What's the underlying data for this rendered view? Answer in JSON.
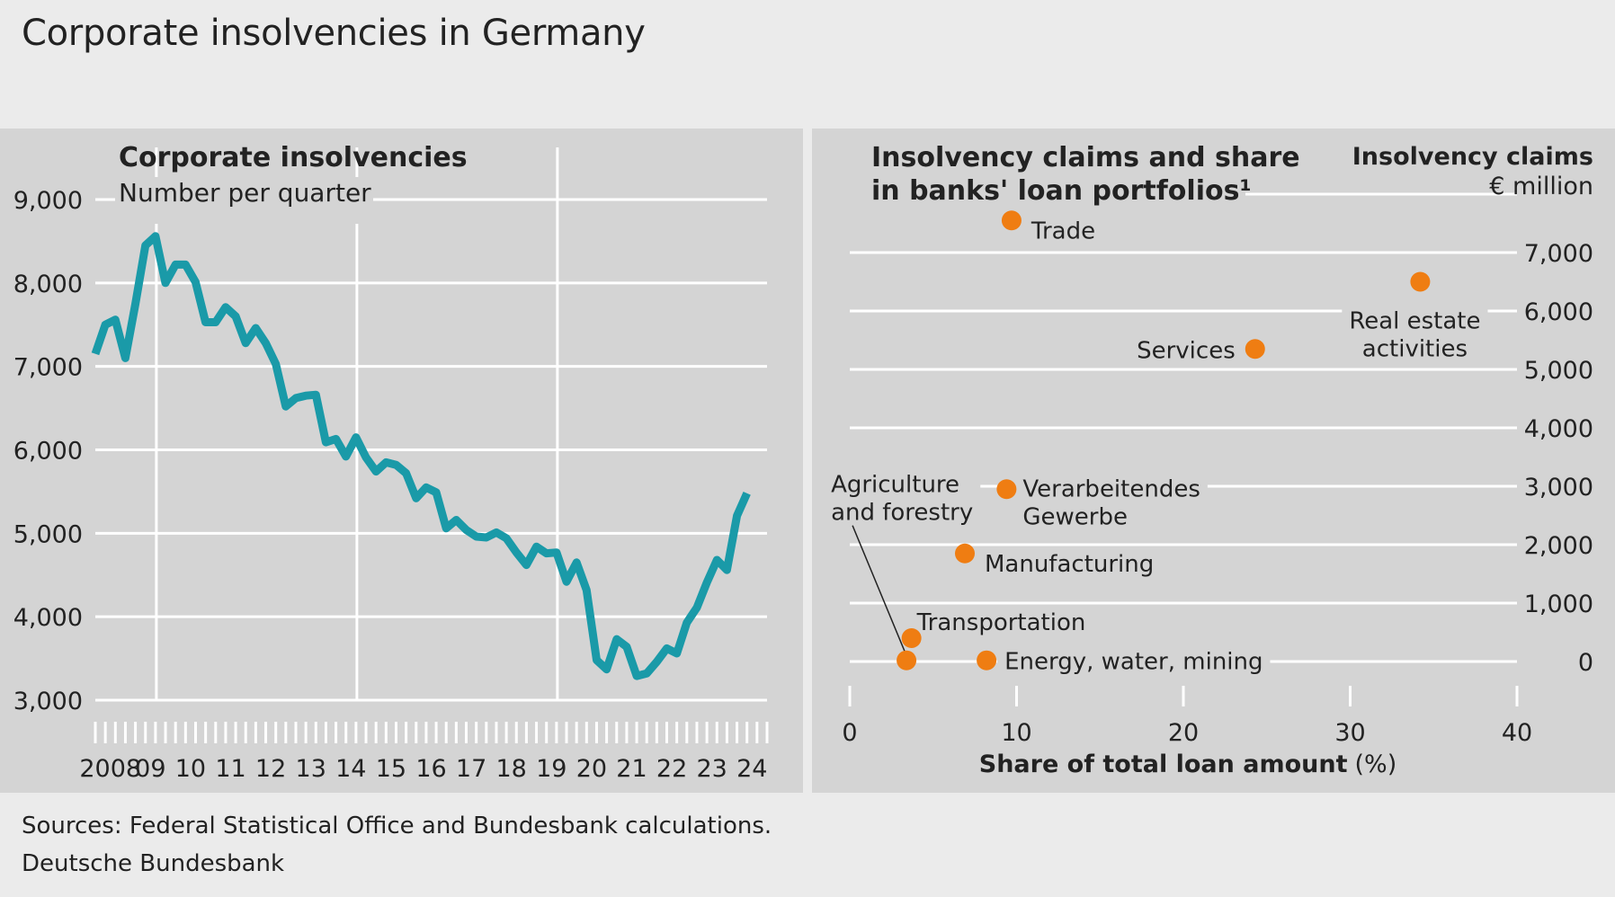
{
  "title": "Corporate insolvencies in Germany",
  "footer": {
    "sources": "Sources: Federal Statistical Office and Bundesbank calculations.",
    "org": "Deutsche Bundesbank"
  },
  "colors": {
    "line": "#1a9aa8",
    "dot": "#ef7d12",
    "panel": "#d4d4d4",
    "grid": "#ffffff"
  },
  "chart_data": [
    {
      "type": "line",
      "title": "Corporate insolvencies",
      "subtitle": "Number per quarter",
      "ylim": [
        3000,
        9000
      ],
      "yticks": [
        3000,
        4000,
        5000,
        6000,
        7000,
        8000,
        9000
      ],
      "ytick_labels": [
        "3,000",
        "4,000",
        "5,000",
        "6,000",
        "7,000",
        "8,000",
        "9,000"
      ],
      "year_labels": [
        "2008",
        "09",
        "10",
        "11",
        "12",
        "13",
        "14",
        "15",
        "16",
        "17",
        "18",
        "19",
        "20",
        "21",
        "22",
        "23",
        "24"
      ],
      "x_start": 2008.0,
      "step": 0.25,
      "grid": true,
      "series": [
        {
          "values": [
            7150,
            7500,
            7560,
            7100,
            7750,
            8450,
            8560,
            8000,
            8220,
            8220,
            8010,
            7530,
            7530,
            7710,
            7600,
            7280,
            7460,
            7280,
            7030,
            6520,
            6620,
            6650,
            6660,
            6090,
            6130,
            5920,
            6150,
            5910,
            5740,
            5850,
            5820,
            5720,
            5420,
            5550,
            5490,
            5060,
            5160,
            5040,
            4960,
            4950,
            5010,
            4940,
            4770,
            4620,
            4840,
            4760,
            4770,
            4420,
            4650,
            4320,
            3480,
            3370,
            3730,
            3640,
            3290,
            3320,
            3460,
            3620,
            3560,
            3930,
            4110,
            4410,
            4680,
            4560,
            5210,
            5480
          ]
        }
      ]
    },
    {
      "type": "scatter",
      "title": "Insolvency claims and share in banks' loan portfolios¹",
      "y_title": "Insolvency claims",
      "y_unit": "€ million",
      "xlabel": "Share of total loan amount",
      "xlabel_unit": "(%)",
      "xlim": [
        0,
        40
      ],
      "ylim": [
        0,
        8000
      ],
      "xticks": [
        0,
        10,
        20,
        30,
        40
      ],
      "yticks": [
        0,
        1000,
        2000,
        3000,
        4000,
        5000,
        6000,
        7000
      ],
      "ytick_labels": [
        "0",
        "1,000",
        "2,000",
        "3,000",
        "4,000",
        "5,000",
        "6,000",
        "7,000"
      ],
      "grid": true,
      "points": [
        {
          "label": "Trade",
          "x": 9.7,
          "y": 7550
        },
        {
          "label": "Real estate activities",
          "x": 34.2,
          "y": 6500
        },
        {
          "label": "Services",
          "x": 24.3,
          "y": 5350
        },
        {
          "label": "Verarbeitendes Gewerbe",
          "x": 9.4,
          "y": 2950
        },
        {
          "label": "Manufacturing",
          "x": 6.9,
          "y": 1850
        },
        {
          "label": "Transportation",
          "x": 3.7,
          "y": 400
        },
        {
          "label": "Agriculture and forestry",
          "x": 3.4,
          "y": 20
        },
        {
          "label": "Energy, water, mining",
          "x": 8.2,
          "y": 20
        }
      ]
    }
  ]
}
